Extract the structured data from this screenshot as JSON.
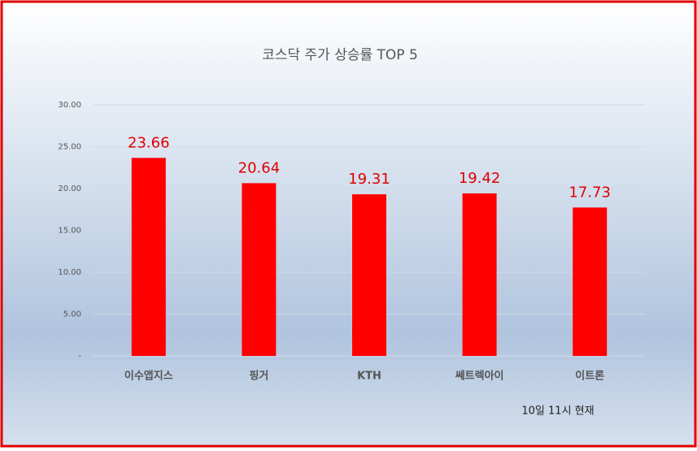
{
  "chart_data": {
    "type": "bar",
    "title": "코스닥 주가 상승률 TOP 5",
    "categories": [
      "이수앱지스",
      "핑거",
      "KTH",
      "쎄트렉아이",
      "이트론"
    ],
    "values": [
      23.66,
      20.64,
      19.31,
      19.42,
      17.73
    ],
    "color": "#ff0000",
    "ylim": [
      0,
      30
    ],
    "yticks": [
      {
        "value": 0,
        "label": "-"
      },
      {
        "value": 5,
        "label": "5.00"
      },
      {
        "value": 10,
        "label": "10.00"
      },
      {
        "value": 15,
        "label": "15.00"
      },
      {
        "value": 20,
        "label": "20.00"
      },
      {
        "value": 25,
        "label": "25.00"
      },
      {
        "value": 30,
        "label": "30.00"
      }
    ],
    "grid": true,
    "annotation": "10일 11시 현재"
  }
}
